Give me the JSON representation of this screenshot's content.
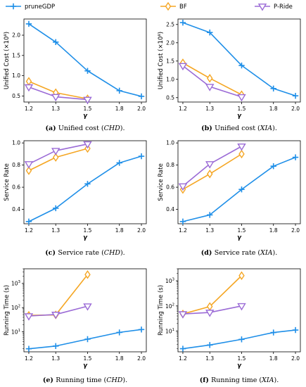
{
  "legend": [
    {
      "name": "pruneGDP",
      "color": "#1f8fe8",
      "marker": "plus"
    },
    {
      "name": "BF",
      "color": "#f5a623",
      "marker": "diamond"
    },
    {
      "name": "P-Ride",
      "color": "#9b6bd6",
      "marker": "triangle-down"
    }
  ],
  "chart_data": [
    {
      "id": "a",
      "type": "line",
      "caption_tag": "(a)",
      "caption_text": "Unified cost (",
      "caption_italic": "CHD",
      "caption_end": ").",
      "xlabel": "γ",
      "ylabel": "Unified Cost (×10⁸)",
      "x_ticks": [
        "1.2",
        "1.3",
        "1.5",
        "1.8",
        "2.0"
      ],
      "y_ticks": [
        0.5,
        1.0,
        1.5,
        2.0
      ],
      "y_scale": "linear",
      "ylim": [
        0.35,
        2.4
      ],
      "series": [
        {
          "name": "pruneGDP",
          "values": [
            2.28,
            1.83,
            1.12,
            0.63,
            0.49
          ]
        },
        {
          "name": "BF",
          "values": [
            0.86,
            0.58,
            0.43
          ]
        },
        {
          "name": "P-Ride",
          "values": [
            0.72,
            0.48,
            0.41
          ]
        }
      ]
    },
    {
      "id": "b",
      "type": "line",
      "caption_tag": "(b)",
      "caption_text": "Unified cost (",
      "caption_italic": "XIA",
      "caption_end": ").",
      "xlabel": "γ",
      "ylabel": "Unified Cost (×10⁸)",
      "x_ticks": [
        "1.2",
        "1.3",
        "1.5",
        "1.8",
        "2.0"
      ],
      "y_ticks": [
        0.5,
        1.0,
        1.5,
        2.0,
        2.5
      ],
      "y_scale": "linear",
      "ylim": [
        0.38,
        2.65
      ],
      "series": [
        {
          "name": "pruneGDP",
          "values": [
            2.55,
            2.28,
            1.38,
            0.75,
            0.55
          ]
        },
        {
          "name": "BF",
          "values": [
            1.45,
            1.03,
            0.58
          ]
        },
        {
          "name": "P-Ride",
          "values": [
            1.37,
            0.8,
            0.52
          ]
        }
      ]
    },
    {
      "id": "c",
      "type": "line",
      "caption_tag": "(c)",
      "caption_text": "Service rate (",
      "caption_italic": "CHD",
      "caption_end": ").",
      "xlabel": "γ",
      "ylabel": "Service Rate",
      "x_ticks": [
        "1.2",
        "1.3",
        "1.5",
        "1.8",
        "2.0"
      ],
      "y_ticks": [
        0.4,
        0.6,
        0.8,
        1.0
      ],
      "y_scale": "linear",
      "ylim": [
        0.27,
        1.02
      ],
      "series": [
        {
          "name": "pruneGDP",
          "values": [
            0.29,
            0.41,
            0.63,
            0.82,
            0.88
          ]
        },
        {
          "name": "BF",
          "values": [
            0.75,
            0.87,
            0.95
          ]
        },
        {
          "name": "P-Ride",
          "values": [
            0.81,
            0.93,
            0.99
          ]
        }
      ]
    },
    {
      "id": "d",
      "type": "line",
      "caption_tag": "(d)",
      "caption_text": "Service rate (",
      "caption_italic": "XIA",
      "caption_end": ").",
      "xlabel": "γ",
      "ylabel": "Service Rate",
      "x_ticks": [
        "1.2",
        "1.3",
        "1.5",
        "1.8",
        "2.0"
      ],
      "y_ticks": [
        0.4,
        0.6,
        0.8,
        1.0
      ],
      "y_scale": "linear",
      "ylim": [
        0.27,
        1.02
      ],
      "series": [
        {
          "name": "pruneGDP",
          "values": [
            0.29,
            0.35,
            0.58,
            0.79,
            0.87
          ]
        },
        {
          "name": "BF",
          "values": [
            0.58,
            0.72,
            0.9
          ]
        },
        {
          "name": "P-Ride",
          "values": [
            0.61,
            0.81,
            0.97
          ]
        }
      ]
    },
    {
      "id": "e",
      "type": "line",
      "caption_tag": "(e)",
      "caption_text": "Running time (",
      "caption_italic": "CHD",
      "caption_end": ").",
      "xlabel": "γ",
      "ylabel": "Running Time (s)",
      "x_ticks": [
        "1.2",
        "1.3",
        "1.5",
        "1.8",
        "2.0"
      ],
      "y_ticks": [
        10,
        100,
        1000
      ],
      "y_scale": "log",
      "ylim": [
        1.5,
        4000
      ],
      "series": [
        {
          "name": "pruneGDP",
          "values": [
            2.0,
            2.6,
            5.0,
            9.5,
            12.5
          ]
        },
        {
          "name": "BF",
          "values": [
            48,
            50,
            2300
          ]
        },
        {
          "name": "P-Ride",
          "values": [
            45,
            52,
            115
          ]
        }
      ]
    },
    {
      "id": "f",
      "type": "line",
      "caption_tag": "(f)",
      "caption_text": "Running time (",
      "caption_italic": "XIA",
      "caption_end": ").",
      "xlabel": "γ",
      "ylabel": "Running Time (s)",
      "x_ticks": [
        "1.2",
        "1.3",
        "1.5",
        "1.8",
        "2.0"
      ],
      "y_ticks": [
        10,
        100,
        1000
      ],
      "y_scale": "log",
      "ylim": [
        1.5,
        3000
      ],
      "series": [
        {
          "name": "pruneGDP",
          "values": [
            2.0,
            2.8,
            4.7,
            8.8,
            11.0
          ]
        },
        {
          "name": "BF",
          "values": [
            48,
            95,
            1600
          ]
        },
        {
          "name": "P-Ride",
          "values": [
            48,
            55,
            100
          ]
        }
      ]
    }
  ]
}
